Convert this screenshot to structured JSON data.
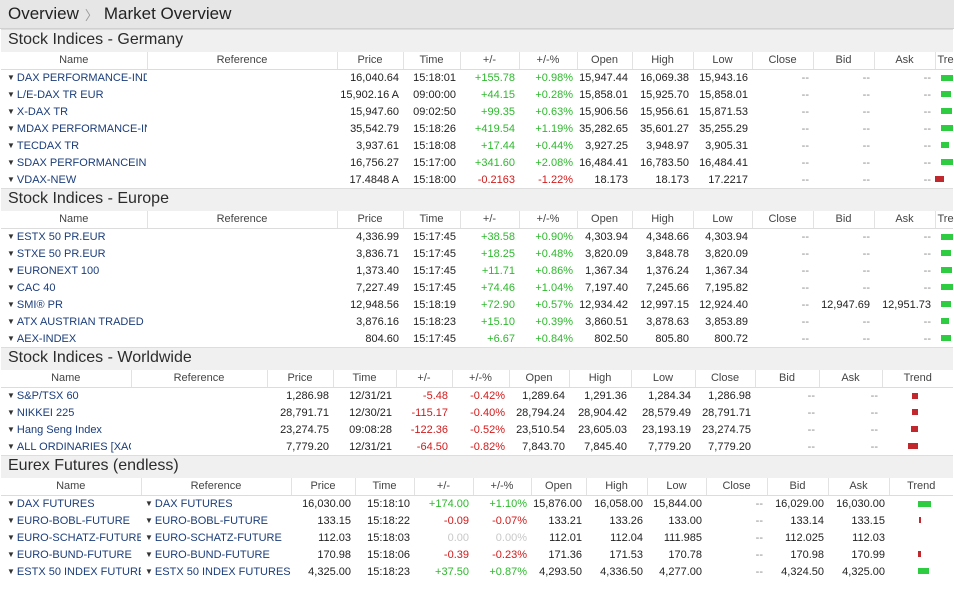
{
  "breadcrumb": {
    "root": "Overview",
    "current": "Market Overview"
  },
  "columns": [
    "Name",
    "Reference",
    "Price",
    "Time",
    "+/-",
    "+/-%",
    "Open",
    "High",
    "Low",
    "Close",
    "Bid",
    "Ask",
    "Trend"
  ],
  "colors": {
    "up": "#2eb82e",
    "down": "#d11a1a",
    "trend_up": "#2ecc40",
    "trend_down": "#c0282d"
  },
  "sections": [
    {
      "title": "Stock Indices - Germany",
      "rows": [
        {
          "name": "DAX PERFORMANCE-INDEX",
          "ref": "",
          "price": "16,040.64",
          "time": "15:18:01",
          "chg": "+155.78",
          "pct": "+0.98%",
          "open": "15,947.44",
          "high": "16,069.38",
          "low": "15,943.16",
          "close": "--",
          "bid": "--",
          "ask": "--",
          "dir": "up",
          "trend": 0.6
        },
        {
          "name": "L/E-DAX TR EUR",
          "ref": "",
          "price": "15,902.16 A",
          "time": "09:00:00",
          "chg": "+44.15",
          "pct": "+0.28%",
          "open": "15,858.01",
          "high": "15,925.70",
          "low": "15,858.01",
          "close": "--",
          "bid": "--",
          "ask": "--",
          "dir": "up",
          "trend": 0.45
        },
        {
          "name": "X-DAX TR",
          "ref": "",
          "price": "15,947.60",
          "time": "09:02:50",
          "chg": "+99.35",
          "pct": "+0.63%",
          "open": "15,906.56",
          "high": "15,956.61",
          "low": "15,871.53",
          "close": "--",
          "bid": "--",
          "ask": "--",
          "dir": "up",
          "trend": 0.5
        },
        {
          "name": "MDAX PERFORMANCE-INDEX",
          "ref": "",
          "price": "35,542.79",
          "time": "15:18:26",
          "chg": "+419.54",
          "pct": "+1.19%",
          "open": "35,282.65",
          "high": "35,601.27",
          "low": "35,255.29",
          "close": "--",
          "bid": "--",
          "ask": "--",
          "dir": "up",
          "trend": 0.65
        },
        {
          "name": "TECDAX TR",
          "ref": "",
          "price": "3,937.61",
          "time": "15:18:08",
          "chg": "+17.44",
          "pct": "+0.44%",
          "open": "3,927.25",
          "high": "3,948.97",
          "low": "3,905.31",
          "close": "--",
          "bid": "--",
          "ask": "--",
          "dir": "up",
          "trend": 0.35
        },
        {
          "name": "SDAX PERFORMANCEINDEX",
          "ref": "",
          "price": "16,756.27",
          "time": "15:17:00",
          "chg": "+341.60",
          "pct": "+2.08%",
          "open": "16,484.41",
          "high": "16,783.50",
          "low": "16,484.41",
          "close": "--",
          "bid": "--",
          "ask": "--",
          "dir": "up",
          "trend": 1.0
        },
        {
          "name": "VDAX-NEW",
          "ref": "",
          "price": "17.4848 A",
          "time": "15:18:00",
          "chg": "-0.2163",
          "pct": "-1.22%",
          "open": "18.173",
          "high": "18.173",
          "low": "17.2217",
          "close": "--",
          "bid": "--",
          "ask": "--",
          "dir": "down",
          "trend": 0.65
        }
      ]
    },
    {
      "title": "Stock Indices - Europe",
      "rows": [
        {
          "name": "ESTX 50 PR.EUR",
          "ref": "",
          "price": "4,336.99",
          "time": "15:17:45",
          "chg": "+38.58",
          "pct": "+0.90%",
          "open": "4,303.94",
          "high": "4,348.66",
          "low": "4,303.94",
          "close": "--",
          "bid": "--",
          "ask": "--",
          "dir": "up",
          "trend": 0.55
        },
        {
          "name": "STXE 50 PR.EUR",
          "ref": "",
          "price": "3,836.71",
          "time": "15:17:45",
          "chg": "+18.25",
          "pct": "+0.48%",
          "open": "3,820.09",
          "high": "3,848.78",
          "low": "3,820.09",
          "close": "--",
          "bid": "--",
          "ask": "--",
          "dir": "up",
          "trend": 0.45
        },
        {
          "name": "EURONEXT 100",
          "ref": "",
          "price": "1,373.40",
          "time": "15:17:45",
          "chg": "+11.71",
          "pct": "+0.86%",
          "open": "1,367.34",
          "high": "1,376.24",
          "low": "1,367.34",
          "close": "--",
          "bid": "--",
          "ask": "--",
          "dir": "up",
          "trend": 0.5
        },
        {
          "name": "CAC 40",
          "ref": "",
          "price": "7,227.49",
          "time": "15:17:45",
          "chg": "+74.46",
          "pct": "+1.04%",
          "open": "7,197.40",
          "high": "7,245.66",
          "low": "7,195.82",
          "close": "--",
          "bid": "--",
          "ask": "--",
          "dir": "up",
          "trend": 0.6
        },
        {
          "name": "SMI® PR",
          "ref": "",
          "price": "12,948.56",
          "time": "15:18:19",
          "chg": "+72.90",
          "pct": "+0.57%",
          "open": "12,934.42",
          "high": "12,997.15",
          "low": "12,924.40",
          "close": "--",
          "bid": "12,947.69",
          "ask": "12,951.73",
          "dir": "up",
          "trend": 0.45
        },
        {
          "name": "ATX AUSTRIAN TRADED EUR",
          "ref": "",
          "price": "3,876.16",
          "time": "15:18:23",
          "chg": "+15.10",
          "pct": "+0.39%",
          "open": "3,860.51",
          "high": "3,878.63",
          "low": "3,853.89",
          "close": "--",
          "bid": "--",
          "ask": "--",
          "dir": "up",
          "trend": 0.35
        },
        {
          "name": "AEX-INDEX",
          "ref": "",
          "price": "804.60",
          "time": "15:17:45",
          "chg": "+6.67",
          "pct": "+0.84%",
          "open": "802.50",
          "high": "805.80",
          "low": "800.72",
          "close": "--",
          "bid": "--",
          "ask": "--",
          "dir": "up",
          "trend": 0.45
        }
      ]
    },
    {
      "title": "Stock Indices - Worldwide",
      "rows": [
        {
          "name": "S&P/TSX 60",
          "ref": "",
          "price": "1,286.98",
          "time": "12/31/21",
          "chg": "-5.48",
          "pct": "-0.42%",
          "open": "1,289.64",
          "high": "1,291.36",
          "low": "1,284.34",
          "close": "1,286.98",
          "bid": "--",
          "ask": "--",
          "dir": "down",
          "trend": 0.25
        },
        {
          "name": "NIKKEI 225",
          "ref": "",
          "price": "28,791.71",
          "time": "12/30/21",
          "chg": "-115.17",
          "pct": "-0.40%",
          "open": "28,794.24",
          "high": "28,904.42",
          "low": "28,579.49",
          "close": "28,791.71",
          "bid": "--",
          "ask": "--",
          "dir": "down",
          "trend": 0.25
        },
        {
          "name": "Hang Seng Index",
          "ref": "",
          "price": "23,274.75",
          "time": "09:08:28",
          "chg": "-122.36",
          "pct": "-0.52%",
          "open": "23,510.54",
          "high": "23,605.03",
          "low": "23,193.19",
          "close": "23,274.75",
          "bid": "--",
          "ask": "--",
          "dir": "down",
          "trend": 0.3
        },
        {
          "name": "ALL ORDINARIES [XAO]",
          "ref": "",
          "price": "7,779.20",
          "time": "12/31/21",
          "chg": "-64.50",
          "pct": "-0.82%",
          "open": "7,843.70",
          "high": "7,845.40",
          "low": "7,779.20",
          "close": "7,779.20",
          "bid": "--",
          "ask": "--",
          "dir": "down",
          "trend": 0.45
        }
      ]
    },
    {
      "title": "Eurex Futures (endless)",
      "rows": [
        {
          "name": "DAX FUTURES",
          "ref": "DAX FUTURES",
          "price": "16,030.00",
          "time": "15:18:10",
          "chg": "+174.00",
          "pct": "+1.10%",
          "open": "15,876.00",
          "high": "16,058.00",
          "low": "15,844.00",
          "close": "--",
          "bid": "16,029.00",
          "ask": "16,030.00",
          "dir": "up",
          "trend": 0.6
        },
        {
          "name": "EURO-BOBL-FUTURE",
          "ref": "EURO-BOBL-FUTURE",
          "price": "133.15",
          "time": "15:18:22",
          "chg": "-0.09",
          "pct": "-0.07%",
          "open": "133.21",
          "high": "133.26",
          "low": "133.00",
          "close": "--",
          "bid": "133.14",
          "ask": "133.15",
          "dir": "down",
          "trend": 0.05
        },
        {
          "name": "EURO-SCHATZ-FUTURE",
          "ref": "EURO-SCHATZ-FUTURE",
          "price": "112.03",
          "time": "15:18:03",
          "chg": "0.00",
          "pct": "0.00%",
          "open": "112.01",
          "high": "112.04",
          "low": "111.985",
          "close": "--",
          "bid": "112.025",
          "ask": "112.03",
          "dir": "flat",
          "trend": 0
        },
        {
          "name": "EURO-BUND-FUTURE",
          "ref": "EURO-BUND-FUTURE",
          "price": "170.98",
          "time": "15:18:06",
          "chg": "-0.39",
          "pct": "-0.23%",
          "open": "171.36",
          "high": "171.53",
          "low": "170.78",
          "close": "--",
          "bid": "170.98",
          "ask": "170.99",
          "dir": "down",
          "trend": 0.15
        },
        {
          "name": "ESTX 50 INDEX FUTURES",
          "ref": "ESTX 50 INDEX FUTURES",
          "price": "4,325.00",
          "time": "15:18:23",
          "chg": "+37.50",
          "pct": "+0.87%",
          "open": "4,293.50",
          "high": "4,336.50",
          "low": "4,277.00",
          "close": "--",
          "bid": "4,324.50",
          "ask": "4,325.00",
          "dir": "up",
          "trend": 0.5
        }
      ]
    }
  ]
}
